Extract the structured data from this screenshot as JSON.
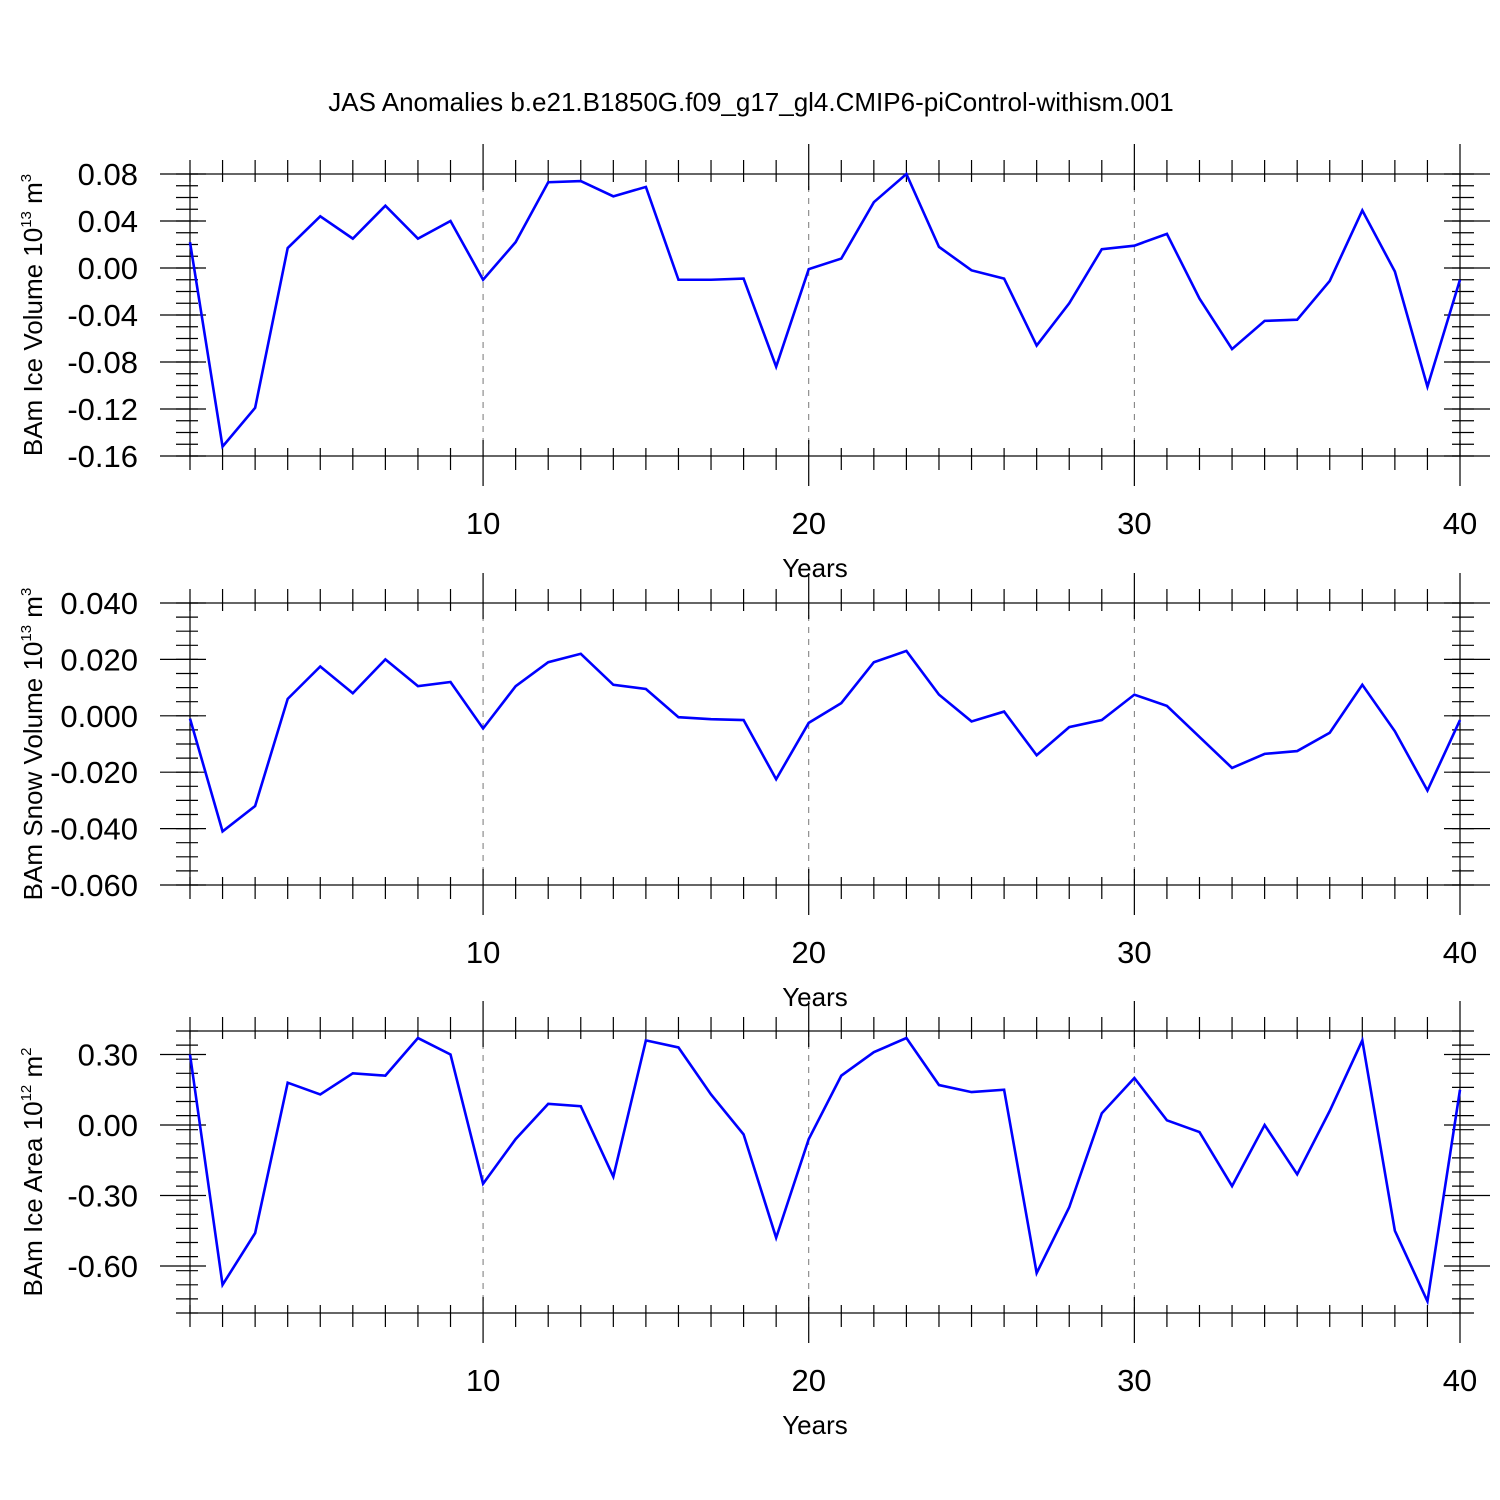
{
  "title": "JAS Anomalies b.e21.B1850G.f09_g17_gl4.CMIP6-piControl-withism.001",
  "colors": {
    "line": "#0000ff",
    "grid": "#777777",
    "axes": "#000000"
  },
  "chart_data": [
    {
      "type": "line",
      "ylabel": {
        "main": "BAm Ice Volume 10",
        "sup": "13",
        "unit": " m",
        "unit_sup": "3"
      },
      "xlabel": "Years",
      "xlim": [
        1,
        40
      ],
      "ylim": [
        -0.16,
        0.08
      ],
      "x_ticks": [
        10,
        20,
        30,
        40
      ],
      "x_tick_labels": [
        "10",
        "20",
        "30",
        "40"
      ],
      "x_minor_step": 1,
      "y_ticks": [
        0.08,
        0.04,
        0.0,
        -0.04,
        -0.08,
        -0.12,
        -0.16
      ],
      "y_tick_labels": [
        "0.08",
        "0.04",
        "0.00",
        "-0.04",
        "-0.08",
        "-0.12",
        "-0.16"
      ],
      "y_minor_step": 0.01,
      "grid_x": [
        10,
        20,
        30
      ],
      "x": [
        1,
        2,
        3,
        4,
        5,
        6,
        7,
        8,
        9,
        10,
        11,
        12,
        13,
        14,
        15,
        16,
        17,
        18,
        19,
        20,
        21,
        22,
        23,
        24,
        25,
        26,
        27,
        28,
        29,
        30,
        31,
        32,
        33,
        34,
        35,
        36,
        37,
        38,
        39,
        40
      ],
      "series": [
        {
          "values": [
            0.022,
            -0.152,
            -0.119,
            0.017,
            0.044,
            0.025,
            0.053,
            0.025,
            0.04,
            -0.01,
            0.022,
            0.073,
            0.074,
            0.061,
            0.069,
            -0.01,
            -0.01,
            -0.009,
            -0.084,
            -0.001,
            0.008,
            0.056,
            0.08,
            0.018,
            -0.002,
            -0.009,
            -0.066,
            -0.03,
            0.016,
            0.019,
            0.029,
            -0.026,
            -0.069,
            -0.045,
            -0.044,
            -0.011,
            0.049,
            -0.003,
            -0.101,
            -0.01
          ]
        }
      ]
    },
    {
      "type": "line",
      "ylabel": {
        "main": "BAm Snow Volume 10",
        "sup": "13",
        "unit": " m",
        "unit_sup": "3"
      },
      "xlabel": "Years",
      "xlim": [
        1,
        40
      ],
      "ylim": [
        -0.06,
        0.04
      ],
      "x_ticks": [
        10,
        20,
        30,
        40
      ],
      "x_tick_labels": [
        "10",
        "20",
        "30",
        "40"
      ],
      "x_minor_step": 1,
      "y_ticks": [
        0.04,
        0.02,
        0.0,
        -0.02,
        -0.04,
        -0.06
      ],
      "y_tick_labels": [
        "0.040",
        "0.020",
        "0.000",
        "-0.020",
        "-0.040",
        "-0.060"
      ],
      "y_minor_step": 0.005,
      "grid_x": [
        10,
        20,
        30
      ],
      "x": [
        1,
        2,
        3,
        4,
        5,
        6,
        7,
        8,
        9,
        10,
        11,
        12,
        13,
        14,
        15,
        16,
        17,
        18,
        19,
        20,
        21,
        22,
        23,
        24,
        25,
        26,
        27,
        28,
        29,
        30,
        31,
        32,
        33,
        34,
        35,
        36,
        37,
        38,
        39,
        40
      ],
      "series": [
        {
          "values": [
            -0.001,
            -0.041,
            -0.032,
            0.006,
            0.0175,
            0.008,
            0.02,
            0.0105,
            0.012,
            -0.0045,
            0.0105,
            0.019,
            0.022,
            0.011,
            0.0095,
            -0.0005,
            -0.0012,
            -0.0015,
            -0.0225,
            -0.0025,
            0.0045,
            0.019,
            0.023,
            0.0075,
            -0.002,
            0.0015,
            -0.014,
            -0.004,
            -0.0015,
            0.0075,
            0.0035,
            -0.0075,
            -0.0185,
            -0.0135,
            -0.0125,
            -0.006,
            0.011,
            -0.0055,
            -0.0265,
            -0.0015
          ]
        }
      ]
    },
    {
      "type": "line",
      "ylabel": {
        "main": "BAm Ice Area 10",
        "sup": "12",
        "unit": " m",
        "unit_sup": "2"
      },
      "xlabel": "Years",
      "xlim": [
        1,
        40
      ],
      "ylim": [
        -0.8,
        0.4
      ],
      "x_ticks": [
        10,
        20,
        30,
        40
      ],
      "x_tick_labels": [
        "10",
        "20",
        "30",
        "40"
      ],
      "x_minor_step": 1,
      "y_ticks": [
        0.3,
        0.0,
        -0.3,
        -0.6
      ],
      "y_tick_labels": [
        "0.30",
        "0.00",
        "-0.30",
        "-0.60"
      ],
      "y_minor_step": 0.06,
      "grid_x": [
        10,
        20,
        30
      ],
      "x": [
        1,
        2,
        3,
        4,
        5,
        6,
        7,
        8,
        9,
        10,
        11,
        12,
        13,
        14,
        15,
        16,
        17,
        18,
        19,
        20,
        21,
        22,
        23,
        24,
        25,
        26,
        27,
        28,
        29,
        30,
        31,
        32,
        33,
        34,
        35,
        36,
        37,
        38,
        39,
        40
      ],
      "series": [
        {
          "values": [
            0.3,
            -0.68,
            -0.46,
            0.18,
            0.13,
            0.22,
            0.21,
            0.37,
            0.3,
            -0.25,
            -0.06,
            0.09,
            0.08,
            -0.22,
            0.36,
            0.33,
            0.13,
            -0.04,
            -0.48,
            -0.06,
            0.21,
            0.31,
            0.37,
            0.17,
            0.14,
            0.15,
            -0.63,
            -0.35,
            0.05,
            0.2,
            0.02,
            -0.03,
            -0.26,
            0.0,
            -0.21,
            0.06,
            0.36,
            -0.45,
            -0.75,
            0.15
          ]
        }
      ]
    }
  ]
}
